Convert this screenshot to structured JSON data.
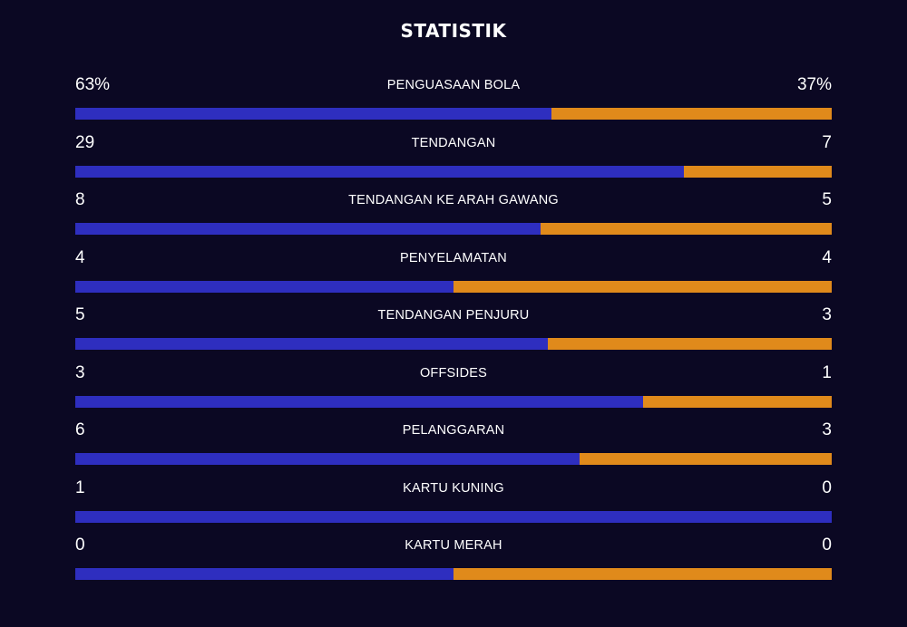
{
  "title": "STATISTIK",
  "colors": {
    "background": "#0b0823",
    "home_bar": "#2e2ebf",
    "away_bar": "#e08a1b",
    "text": "#ffffff"
  },
  "stats": [
    {
      "label": "PENGUASAAN BOLA",
      "home": "63%",
      "away": "37%",
      "home_share": 0.63
    },
    {
      "label": "TENDANGAN",
      "home": "29",
      "away": "7",
      "home_share": 0.805
    },
    {
      "label": "TENDANGAN KE ARAH GAWANG",
      "home": "8",
      "away": "5",
      "home_share": 0.615
    },
    {
      "label": "PENYELAMATAN",
      "home": "4",
      "away": "4",
      "home_share": 0.5
    },
    {
      "label": "TENDANGAN PENJURU",
      "home": "5",
      "away": "3",
      "home_share": 0.625
    },
    {
      "label": "OFFSIDES",
      "home": "3",
      "away": "1",
      "home_share": 0.75
    },
    {
      "label": "PELANGGARAN",
      "home": "6",
      "away": "3",
      "home_share": 0.667
    },
    {
      "label": "KARTU KUNING",
      "home": "1",
      "away": "0",
      "home_share": 1.0
    },
    {
      "label": "KARTU MERAH",
      "home": "0",
      "away": "0",
      "home_share": 0.5
    }
  ]
}
